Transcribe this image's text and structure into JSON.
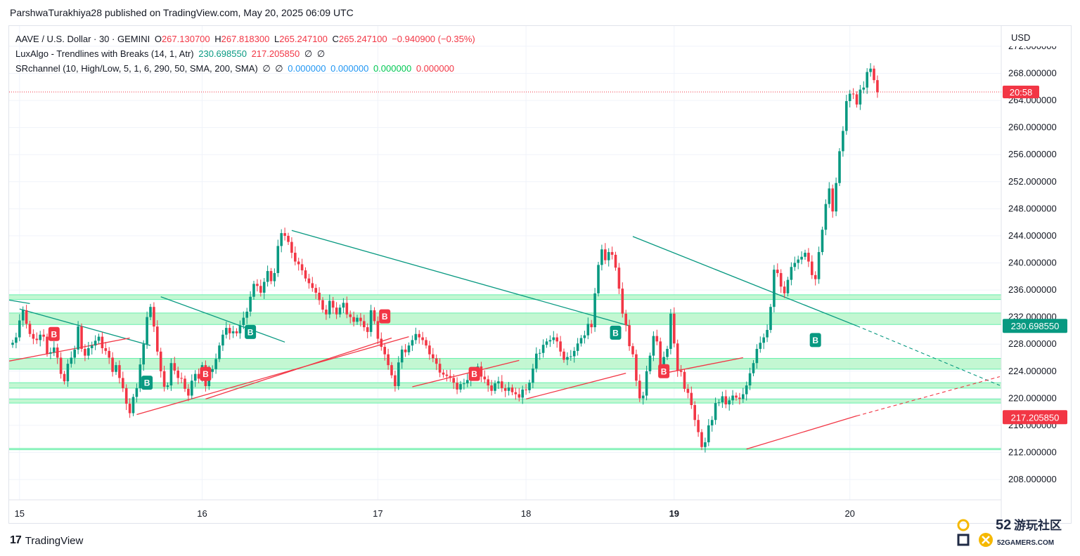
{
  "header": {
    "caption": "ParshwaTurakhiya28 published on TradingView.com, May 20, 2025 06:09 UTC"
  },
  "legend": {
    "symbol_line": "AAVE / U.S. Dollar · 30 · GEMINI",
    "open_label": "O",
    "open": "267.130700",
    "high_label": "H",
    "high": "267.818300",
    "low_label": "L",
    "low": "265.247100",
    "close_label": "C",
    "close": "265.247100",
    "change": "−0.940900 (−0.35%)",
    "luxalgo_name": "LuxAlgo - Trendlines with Breaks (14, 1, Atr)",
    "luxalgo_v1": "230.698550",
    "luxalgo_v2": "217.205850",
    "luxalgo_v3": "∅",
    "luxalgo_v4": "∅",
    "sr_name": "SRchannel (10, High/Low, 5, 1, 6, 290, 50, SMA, 200, SMA)",
    "sr_v1": "∅",
    "sr_v2": "∅",
    "sr_v3": "0.000000",
    "sr_v4": "0.000000",
    "sr_v5": "0.000000",
    "sr_v6": "0.000000"
  },
  "price_axis": {
    "currency": "USD",
    "countdown": "20:58",
    "upper_trend_value": "230.698550",
    "lower_trend_value": "217.205850"
  },
  "footer": {
    "brand_mark": "17",
    "brand": "TradingView",
    "watermark_number": "52",
    "watermark_text": "游玩社区",
    "watermark_url": "52GAMERS.COM"
  },
  "colors": {
    "up": "#089981",
    "down": "#f23645",
    "sr_zone": "#b9f6ca",
    "sr_line": "#69f0ae",
    "upper_trend": "#089981",
    "lower_trend": "#f23645",
    "grid": "#f0f3fa",
    "axis_text": "#131722",
    "current_price_label": "#f23645"
  },
  "chart_data": {
    "type": "candlestick",
    "symbol": "AAVE / U.S. Dollar",
    "interval": "30",
    "exchange": "GEMINI",
    "y_ticks": [
      "208.000000",
      "212.000000",
      "216.000000",
      "220.000000",
      "224.000000",
      "228.000000",
      "232.000000",
      "236.000000",
      "240.000000",
      "244.000000",
      "248.000000",
      "252.000000",
      "256.000000",
      "260.000000",
      "264.000000",
      "268.000000",
      "272.000000"
    ],
    "ylim": [
      205,
      275
    ],
    "x_labels": [
      {
        "label": "15",
        "index": 2
      },
      {
        "label": "16",
        "index": 55
      },
      {
        "label": "17",
        "index": 106
      },
      {
        "label": "18",
        "index": 149
      },
      {
        "label": "19",
        "index": 192
      },
      {
        "label": "20",
        "index": 243
      }
    ],
    "current_price": 265.2471,
    "closes": [
      228.2,
      229.0,
      231.5,
      233.0,
      231.0,
      229.5,
      228.8,
      228.6,
      229.4,
      229.1,
      226.6,
      226.8,
      227.5,
      226.0,
      223.6,
      222.5,
      225.1,
      226.0,
      227.2,
      230.6,
      227.3,
      226.3,
      227.4,
      227.8,
      228.5,
      229.1,
      227.4,
      227.0,
      226.0,
      223.9,
      224.9,
      223.0,
      221.5,
      219.2,
      217.8,
      220.2,
      221.5,
      225.0,
      228.0,
      232.0,
      233.5,
      230.6,
      226.9,
      224.0,
      221.7,
      221.9,
      225.2,
      224.1,
      223.0,
      222.9,
      221.4,
      220.4,
      222.6,
      223.6,
      222.9,
      224.9,
      221.8,
      223.9,
      224.3,
      225.8,
      227.8,
      229.4,
      230.4,
      229.6,
      229.9,
      229.6,
      230.8,
      231.9,
      232.8,
      235.0,
      236.9,
      236.6,
      235.6,
      237.2,
      238.8,
      237.3,
      238.5,
      242.5,
      244.4,
      244.0,
      243.1,
      241.5,
      240.2,
      239.8,
      238.9,
      237.7,
      237.0,
      236.3,
      235.6,
      234.5,
      233.1,
      232.4,
      234.4,
      233.4,
      232.4,
      233.4,
      234.1,
      232.4,
      232.0,
      231.3,
      231.9,
      231.4,
      230.5,
      229.8,
      233.0,
      231.4,
      228.8,
      227.6,
      226.5,
      224.9,
      223.4,
      221.8,
      225.3,
      227.2,
      226.8,
      227.8,
      228.6,
      229.5,
      229.0,
      228.6,
      227.8,
      226.5,
      225.9,
      225.1,
      223.8,
      223.5,
      223.3,
      223.0,
      222.3,
      221.3,
      222.1,
      222.2,
      222.7,
      223.4,
      223.7,
      224.7,
      223.2,
      222.8,
      221.9,
      221.1,
      222.2,
      222.5,
      221.5,
      221.1,
      221.6,
      220.9,
      220.6,
      220.1,
      221.3,
      221.2,
      222.3,
      224.4,
      226.6,
      226.7,
      227.9,
      228.4,
      228.6,
      229.0,
      228.4,
      226.9,
      225.7,
      226.1,
      226.2,
      227.0,
      228.1,
      228.9,
      229.3,
      231.0,
      230.5,
      235.5,
      239.7,
      242.0,
      240.4,
      241.6,
      241.2,
      239.3,
      236.2,
      232.5,
      230.8,
      227.7,
      226.5,
      222.6,
      220.0,
      220.4,
      224.0,
      226.3,
      229.2,
      228.4,
      224.1,
      226.1,
      227.3,
      232.5,
      228.1,
      224.1,
      223.9,
      221.4,
      220.8,
      219.0,
      216.8,
      215.0,
      212.8,
      213.5,
      216.0,
      216.8,
      219.3,
      219.4,
      220.3,
      219.1,
      219.7,
      220.4,
      220.1,
      219.9,
      220.6,
      221.9,
      223.7,
      225.2,
      227.3,
      228.2,
      229.0,
      230.1,
      233.5,
      239.0,
      238.5,
      236.5,
      235.5,
      237.5,
      239.4,
      240.0,
      240.5,
      240.9,
      241.5,
      240.2,
      238.2,
      237.6,
      241.6,
      244.9,
      248.7,
      251.0,
      247.6,
      251.8,
      256.5,
      259.5,
      263.9,
      265.0,
      264.9,
      263.4,
      265.6,
      265.9,
      268.2,
      268.7,
      267.0,
      265.2
    ],
    "sr_zones": [
      {
        "from": 234.6,
        "to": 235.3
      },
      {
        "from": 230.9,
        "to": 232.6
      },
      {
        "from": 224.3,
        "to": 225.9
      },
      {
        "from": 221.5,
        "to": 222.3
      },
      {
        "from": 219.3,
        "to": 219.9
      },
      {
        "from": 212.4,
        "to": 212.6
      }
    ],
    "upper_trendlines": [
      {
        "from": [
          -1,
          234.5
        ],
        "to": [
          5,
          234.0
        ]
      },
      {
        "from": [
          2,
          233.2
        ],
        "to": [
          40,
          227.8
        ]
      },
      {
        "from": [
          43,
          235.0
        ],
        "to": [
          79,
          228.3
        ]
      },
      {
        "from": [
          81,
          244.8
        ],
        "to": [
          179,
          230.7
        ]
      },
      {
        "from": [
          180,
          243.9
        ],
        "to": [
          245,
          230.7
        ],
        "dashed_to": [
          290,
          221.9
        ]
      }
    ],
    "lower_trendlines": [
      {
        "from": [
          -1,
          225.5
        ],
        "to": [
          34,
          228.9
        ]
      },
      {
        "from": [
          36,
          217.6
        ],
        "to": [
          115,
          229.1
        ]
      },
      {
        "from": [
          56,
          219.9
        ],
        "to": [
          110,
          228.9
        ]
      },
      {
        "from": [
          116,
          221.7
        ],
        "to": [
          147,
          225.6
        ]
      },
      {
        "from": [
          149,
          219.9
        ],
        "to": [
          178,
          223.7
        ]
      },
      {
        "from": [
          189,
          223.7
        ],
        "to": [
          212,
          226.0
        ]
      },
      {
        "from": [
          213,
          212.5
        ],
        "to": [
          245,
          217.4
        ],
        "dashed_to": [
          290,
          223.2
        ]
      }
    ],
    "signals": [
      {
        "type": "bear",
        "label": "B",
        "index": 12,
        "price": 229.5
      },
      {
        "type": "bull",
        "label": "B",
        "index": 39,
        "price": 222.3
      },
      {
        "type": "bear",
        "label": "B",
        "index": 56,
        "price": 223.6
      },
      {
        "type": "bull",
        "label": "B",
        "index": 69,
        "price": 229.8
      },
      {
        "type": "bear",
        "label": "B",
        "index": 108,
        "price": 232.1
      },
      {
        "type": "bear",
        "label": "B",
        "index": 134,
        "price": 223.6
      },
      {
        "type": "bull",
        "label": "B",
        "index": 175,
        "price": 229.7
      },
      {
        "type": "bear",
        "label": "B",
        "index": 189,
        "price": 224.0
      },
      {
        "type": "bull",
        "label": "B",
        "index": 233,
        "price": 228.6
      }
    ]
  }
}
